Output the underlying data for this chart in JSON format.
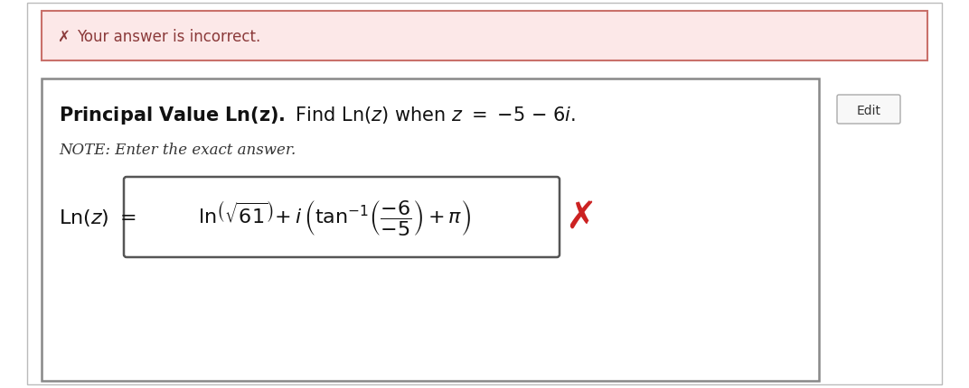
{
  "page_bg": "#ffffff",
  "error_banner_bg": "#fce8e8",
  "error_banner_border": "#c9706a",
  "error_text": "Your answer is incorrect.",
  "error_text_color": "#8b3a3a",
  "cross_color": "#cc2222",
  "main_box_border": "#888888",
  "edit_btn_text": "Edit",
  "edit_btn_border": "#aaaaaa",
  "edit_btn_bg": "#f8f8f8",
  "note_text": "NOTE: Enter the exact answer.",
  "outer_border_color": "#bbbbbb",
  "ans_box_border": "#555555",
  "title_bold_part": "Principal Value Ln(",
  "title_italic_z1": "z",
  "title_bold_end": ").",
  "title_normal_part": " Find Ln(",
  "title_italic_z2": "z",
  "title_normal_end": ") when ",
  "title_italic_z3": "z",
  "title_equals": " = −5 – 6",
  "title_italic_i": "i",
  "title_dot": "."
}
